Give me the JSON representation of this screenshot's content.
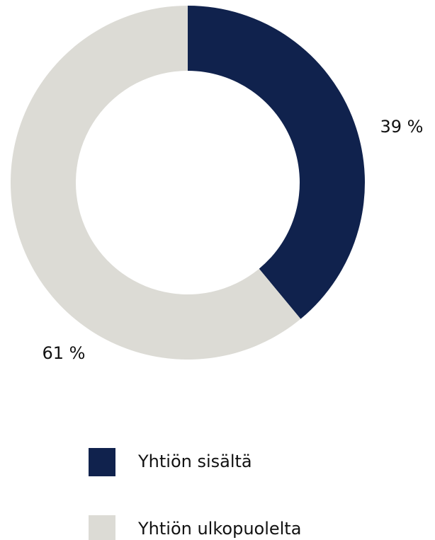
{
  "chart_data": {
    "type": "donut",
    "categories": [
      "Yhtiön sisältä",
      "Yhtiön ulkopuolelta"
    ],
    "values": [
      39,
      61
    ],
    "value_labels": [
      "39 %",
      "61 %"
    ],
    "colors": [
      "#10224d",
      "#dcdbd5"
    ]
  }
}
